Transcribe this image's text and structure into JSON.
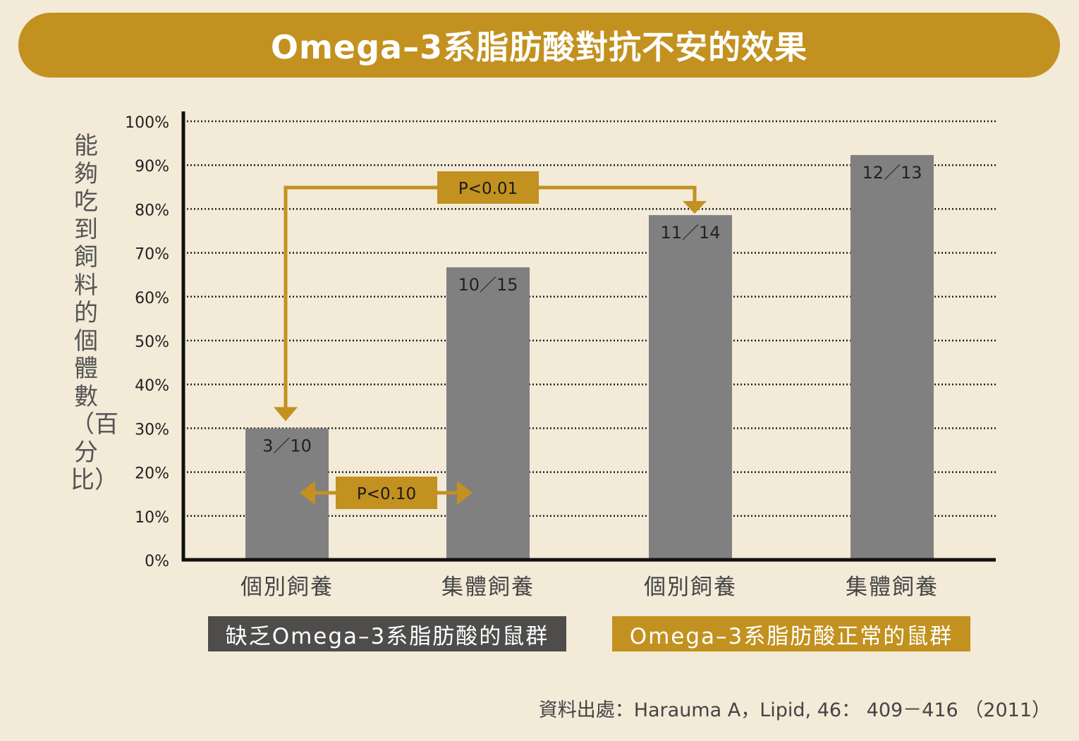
{
  "title": "Omega–3系脂肪酸對抗不安的效果",
  "colors": {
    "background": "#f3ead8",
    "accent": "#c2911f",
    "bar": "#808080",
    "dark_label": "#4f4d4b"
  },
  "chart_data": {
    "type": "bar",
    "ylabel": "能夠吃到飼料的個體數（百分比）",
    "ylim": [
      0,
      100
    ],
    "yticks": [
      0,
      10,
      20,
      30,
      40,
      50,
      60,
      70,
      80,
      90,
      100
    ],
    "ytick_labels": [
      "0%",
      "10%",
      "20%",
      "30%",
      "40%",
      "50%",
      "60%",
      "70%",
      "80%",
      "90%",
      "100%"
    ],
    "grid": true,
    "categories": [
      "個別飼養",
      "集體飼養",
      "個別飼養",
      "集體飼養"
    ],
    "values": [
      30,
      66.7,
      78.6,
      92.3
    ],
    "data_labels": [
      "3／10",
      "10／15",
      "11／14",
      "12／13"
    ],
    "groups": [
      {
        "label": "缺乏Omega–3系脂肪酸的鼠群",
        "bars": [
          0,
          1
        ]
      },
      {
        "label": "Omega–3系脂肪酸正常的鼠群",
        "bars": [
          2,
          3
        ]
      }
    ],
    "annotations": [
      {
        "label": "P<0.10",
        "from": 0,
        "to": 1,
        "kind": "double-arrow"
      },
      {
        "label": "P<0.01",
        "from": 0,
        "to": 2,
        "kind": "bracket"
      }
    ]
  },
  "source": "資料出處：Harauma A，Lipid, 46： 409－416 （2011）"
}
